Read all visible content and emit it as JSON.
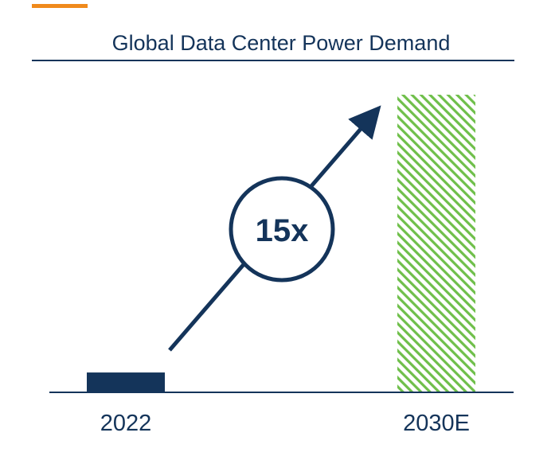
{
  "colors": {
    "accent": "#f08a1c",
    "navy": "#14345a",
    "hatch": "#6fbf4a",
    "background": "#ffffff"
  },
  "chart_data": {
    "type": "bar",
    "title": "Global Data Center Power Demand",
    "categories": [
      "2022",
      "2030E"
    ],
    "values": [
      1,
      15
    ],
    "ylim": [
      0,
      15
    ],
    "xlabel": "",
    "ylabel": "",
    "grid": false,
    "bar_styles": [
      "solid",
      "hatched"
    ],
    "annotation": {
      "text": "15x",
      "shape": "circle",
      "arrow": "upward from 2022 toward 2030E"
    }
  }
}
